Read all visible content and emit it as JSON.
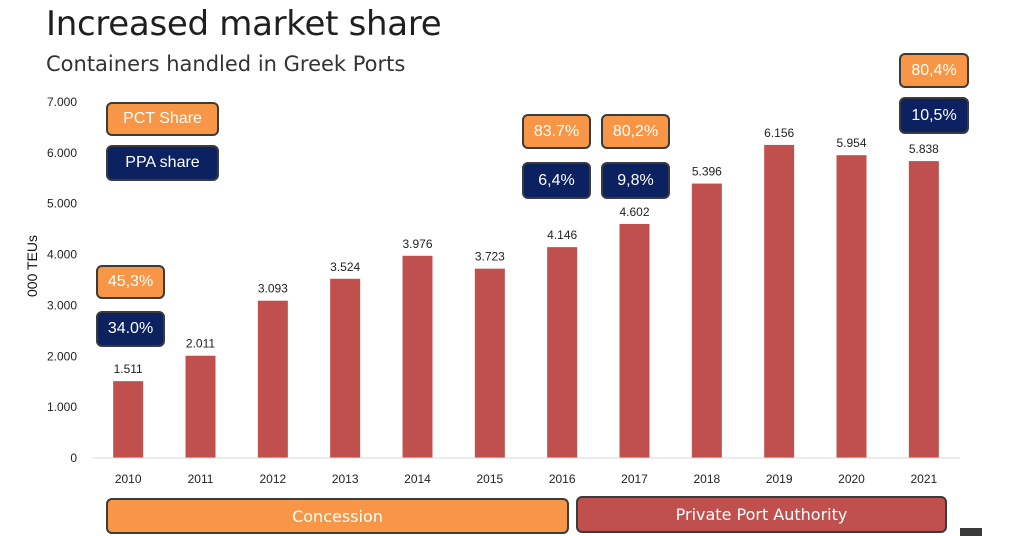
{
  "title": "Increased market share",
  "subtitle": "Containers handled in Greek Ports",
  "legend": {
    "pct": "PCT Share",
    "ppa": "PPA share"
  },
  "share_boxes": [
    {
      "year": "2010",
      "pct": "45,3%",
      "ppa": "34.0%"
    },
    {
      "year": "2016",
      "pct": "83.7%",
      "ppa": "6,4%"
    },
    {
      "year": "2017",
      "pct": "80,2%",
      "ppa": "9,8%"
    },
    {
      "year": "2021",
      "pct": "80,4%",
      "ppa": "10,5%"
    }
  ],
  "periods": {
    "concession": "Concession",
    "authority": "Private Port Authority"
  },
  "colors": {
    "bar": "#c0504d",
    "orange": "#f79646",
    "navy": "#0b2160"
  },
  "chart_data": {
    "type": "bar",
    "title": "Containers handled in Greek Ports",
    "xlabel": "",
    "ylabel": "000 TEUs",
    "ylim": [
      0,
      7000
    ],
    "yticks": [
      0,
      1000,
      2000,
      3000,
      4000,
      5000,
      6000,
      7000
    ],
    "ytick_labels": [
      "0",
      "1.000",
      "2.000",
      "3.000",
      "4.000",
      "5.000",
      "6.000",
      "7.000"
    ],
    "categories": [
      "2010",
      "2011",
      "2012",
      "2013",
      "2014",
      "2015",
      "2016",
      "2017",
      "2018",
      "2019",
      "2020",
      "2021"
    ],
    "values": [
      1511,
      2011,
      3093,
      3524,
      3976,
      3723,
      4146,
      4602,
      5396,
      6156,
      5954,
      5838
    ],
    "value_labels": [
      "1.511",
      "2.011",
      "3.093",
      "3.524",
      "3.976",
      "3.723",
      "4.146",
      "4.602",
      "5.396",
      "6.156",
      "5.954",
      "5.838"
    ],
    "grid": false
  }
}
